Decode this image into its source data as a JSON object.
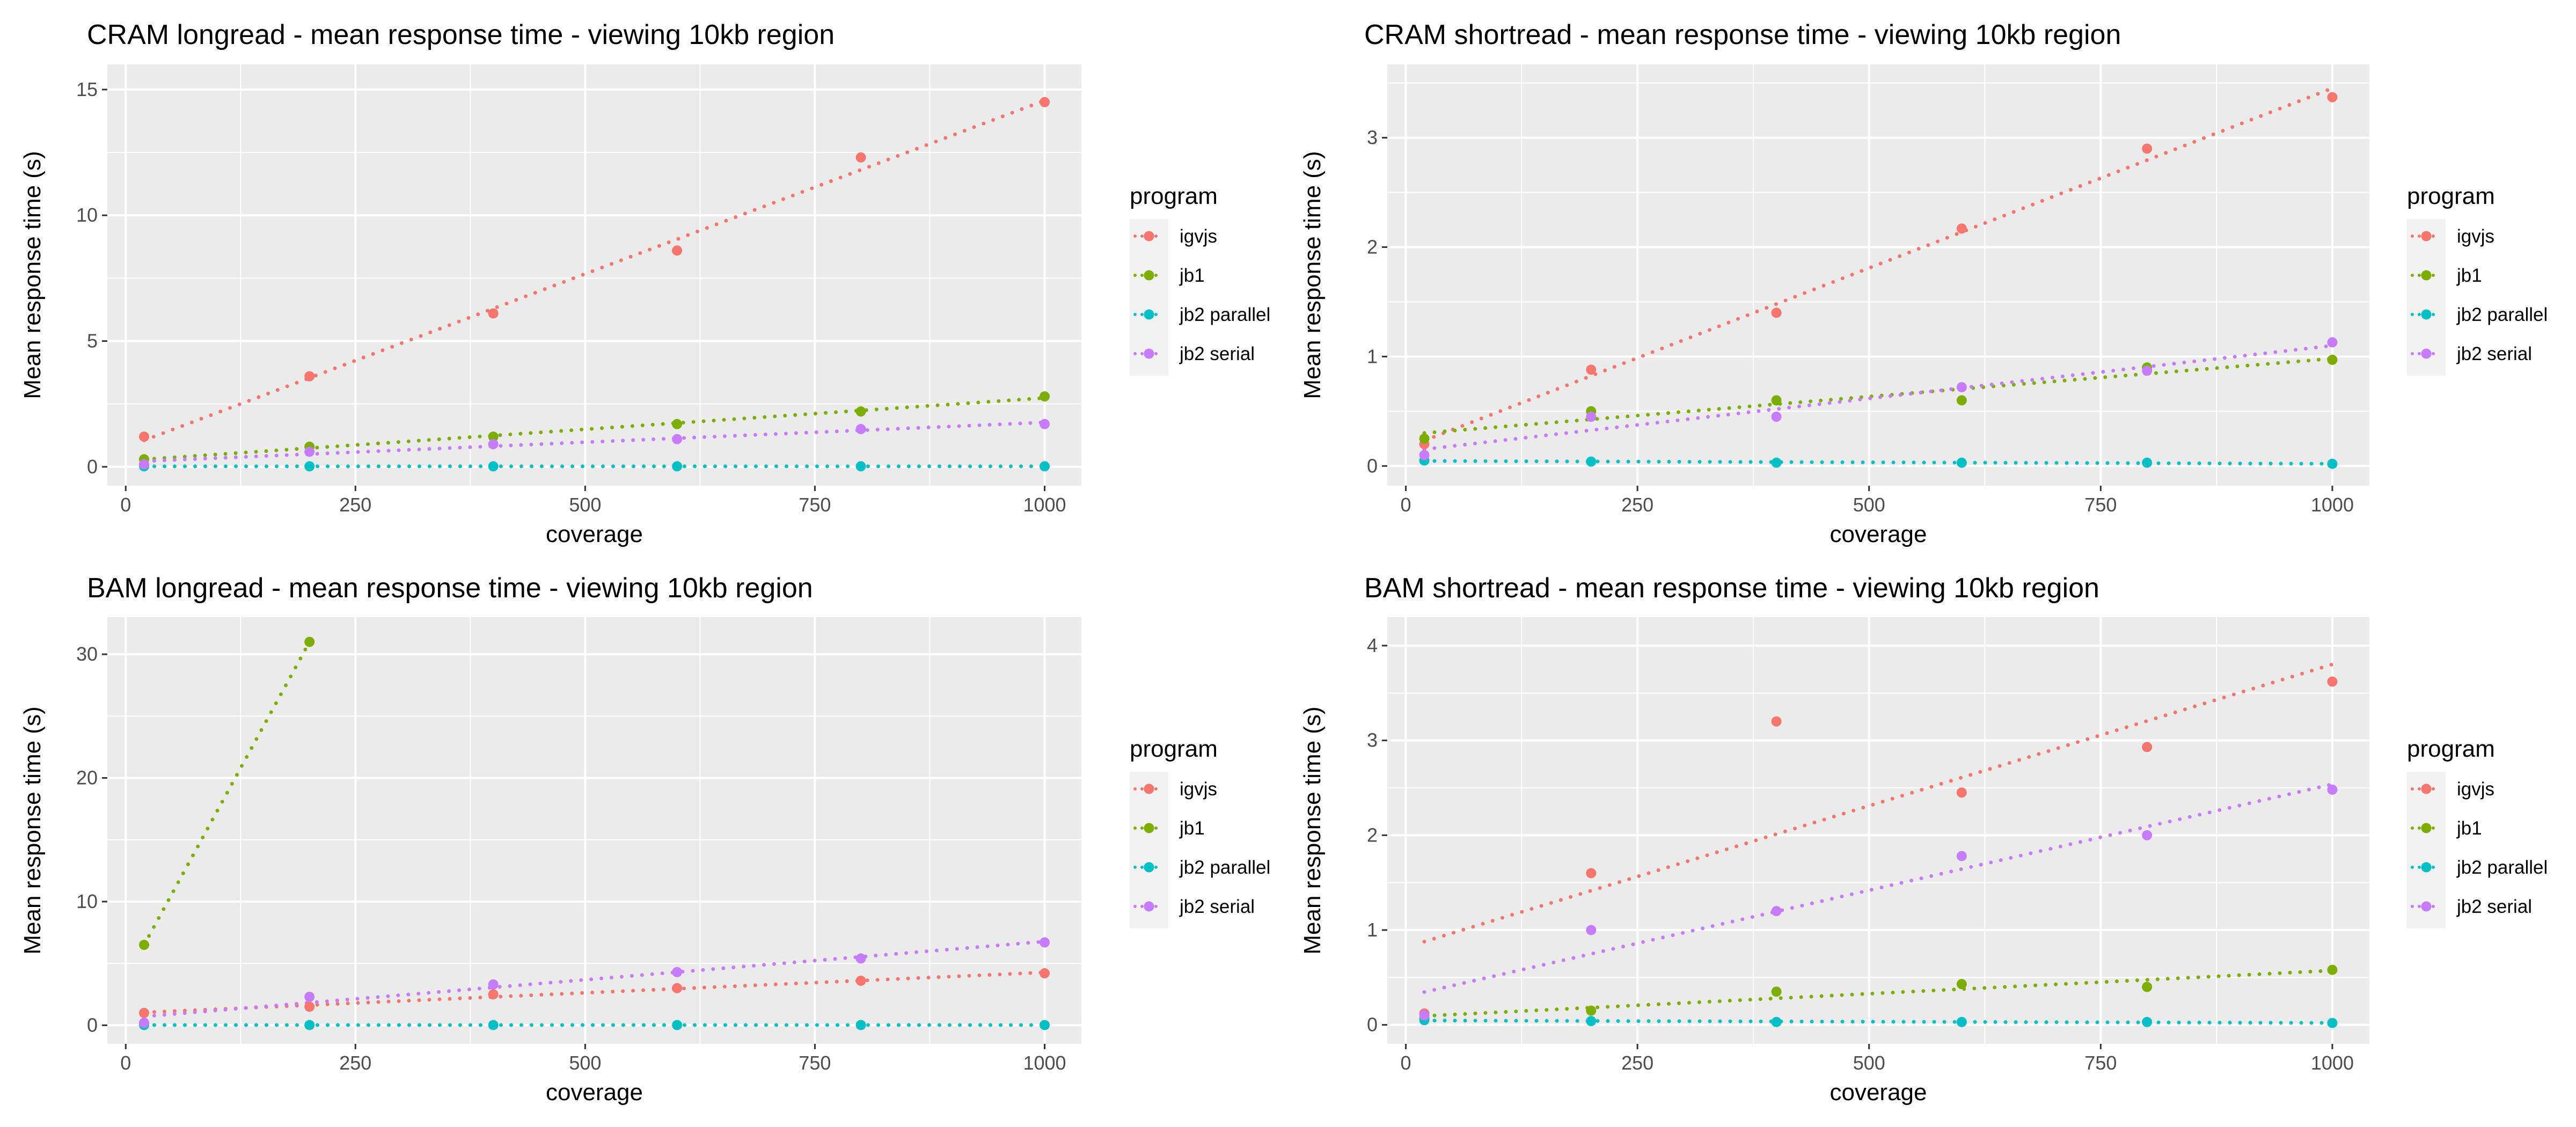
{
  "chart_data": [
    {
      "type": "scatter",
      "title": "CRAM longread - mean response time - viewing 10kb region",
      "xlabel": "coverage",
      "ylabel": "Mean response time (s)",
      "xlim": [
        -20,
        1040
      ],
      "ylim": [
        -0.75,
        16
      ],
      "xticks": [
        0,
        250,
        500,
        750,
        1000
      ],
      "yticks": [
        0,
        5,
        10,
        15
      ],
      "x": [
        20,
        200,
        400,
        600,
        800,
        1000
      ],
      "legend_title": "program",
      "legend_position": "right",
      "trendline": "linear, dotted",
      "series": [
        {
          "name": "igvjs",
          "color": "#F8766D",
          "values": [
            1.2,
            3.6,
            6.1,
            8.6,
            12.3,
            14.5
          ]
        },
        {
          "name": "jb1",
          "color": "#7CAE00",
          "values": [
            0.3,
            0.8,
            1.2,
            1.7,
            2.2,
            2.8
          ]
        },
        {
          "name": "jb2 parallel",
          "color": "#00BFC4",
          "values": [
            0.02,
            0.02,
            0.02,
            0.02,
            0.02,
            0.02
          ]
        },
        {
          "name": "jb2 serial",
          "color": "#C77CFF",
          "values": [
            0.1,
            0.6,
            0.9,
            1.1,
            1.5,
            1.7
          ]
        }
      ]
    },
    {
      "type": "scatter",
      "title": "CRAM shortread - mean response time - viewing 10kb region",
      "xlabel": "coverage",
      "ylabel": "Mean response time (s)",
      "xlim": [
        -20,
        1040
      ],
      "ylim": [
        -0.18,
        3.67
      ],
      "xticks": [
        0,
        250,
        500,
        750,
        1000
      ],
      "yticks": [
        0,
        1,
        2,
        3
      ],
      "x": [
        20,
        200,
        400,
        600,
        800,
        1000
      ],
      "legend_title": "program",
      "legend_position": "right",
      "trendline": "linear, dotted",
      "series": [
        {
          "name": "igvjs",
          "color": "#F8766D",
          "values": [
            0.2,
            0.88,
            1.4,
            2.17,
            2.9,
            3.37
          ]
        },
        {
          "name": "jb1",
          "color": "#7CAE00",
          "values": [
            0.25,
            0.5,
            0.6,
            0.6,
            0.9,
            0.97
          ]
        },
        {
          "name": "jb2 parallel",
          "color": "#00BFC4",
          "values": [
            0.05,
            0.04,
            0.03,
            0.03,
            0.03,
            0.02
          ]
        },
        {
          "name": "jb2 serial",
          "color": "#C77CFF",
          "values": [
            0.1,
            0.45,
            0.45,
            0.72,
            0.87,
            1.13
          ]
        }
      ]
    },
    {
      "type": "scatter",
      "title": "BAM longread - mean response time - viewing 10kb region",
      "xlabel": "coverage",
      "ylabel": "Mean response time (s)",
      "xlim": [
        -20,
        1040
      ],
      "ylim": [
        -1.5,
        33
      ],
      "xticks": [
        0,
        250,
        500,
        750,
        1000
      ],
      "yticks": [
        0,
        10,
        20,
        30
      ],
      "x": [
        20,
        200,
        400,
        600,
        800,
        1000
      ],
      "legend_title": "program",
      "legend_position": "right",
      "trendline": "linear, dotted",
      "series": [
        {
          "name": "igvjs",
          "color": "#F8766D",
          "values": [
            1.0,
            1.5,
            2.5,
            3.0,
            3.6,
            4.2
          ]
        },
        {
          "name": "jb1",
          "color": "#7CAE00",
          "values": [
            6.5,
            31.0
          ]
        },
        {
          "name": "jb2 parallel",
          "color": "#00BFC4",
          "values": [
            0.02,
            0.02,
            0.02,
            0.02,
            0.02,
            0.02
          ]
        },
        {
          "name": "jb2 serial",
          "color": "#C77CFF",
          "values": [
            0.2,
            2.3,
            3.3,
            4.3,
            5.4,
            6.7
          ]
        }
      ]
    },
    {
      "type": "scatter",
      "title": "BAM shortread - mean response time - viewing 10kb region",
      "xlabel": "coverage",
      "ylabel": "Mean response time (s)",
      "xlim": [
        -20,
        1040
      ],
      "ylim": [
        -0.2,
        4.3
      ],
      "xticks": [
        0,
        250,
        500,
        750,
        1000
      ],
      "yticks": [
        0,
        1,
        2,
        3,
        4
      ],
      "x": [
        20,
        200,
        400,
        600,
        800,
        1000
      ],
      "legend_title": "program",
      "legend_position": "right",
      "trendline": "linear, dotted",
      "series": [
        {
          "name": "igvjs",
          "color": "#F8766D",
          "values": [
            0.12,
            1.6,
            3.2,
            2.45,
            2.93,
            3.62
          ]
        },
        {
          "name": "jb1",
          "color": "#7CAE00",
          "values": [
            0.07,
            0.15,
            0.35,
            0.43,
            0.4,
            0.58
          ]
        },
        {
          "name": "jb2 parallel",
          "color": "#00BFC4",
          "values": [
            0.05,
            0.04,
            0.03,
            0.03,
            0.03,
            0.02
          ]
        },
        {
          "name": "jb2 serial",
          "color": "#C77CFF",
          "values": [
            0.1,
            1.0,
            1.2,
            1.78,
            2.0,
            2.48
          ]
        }
      ]
    }
  ]
}
